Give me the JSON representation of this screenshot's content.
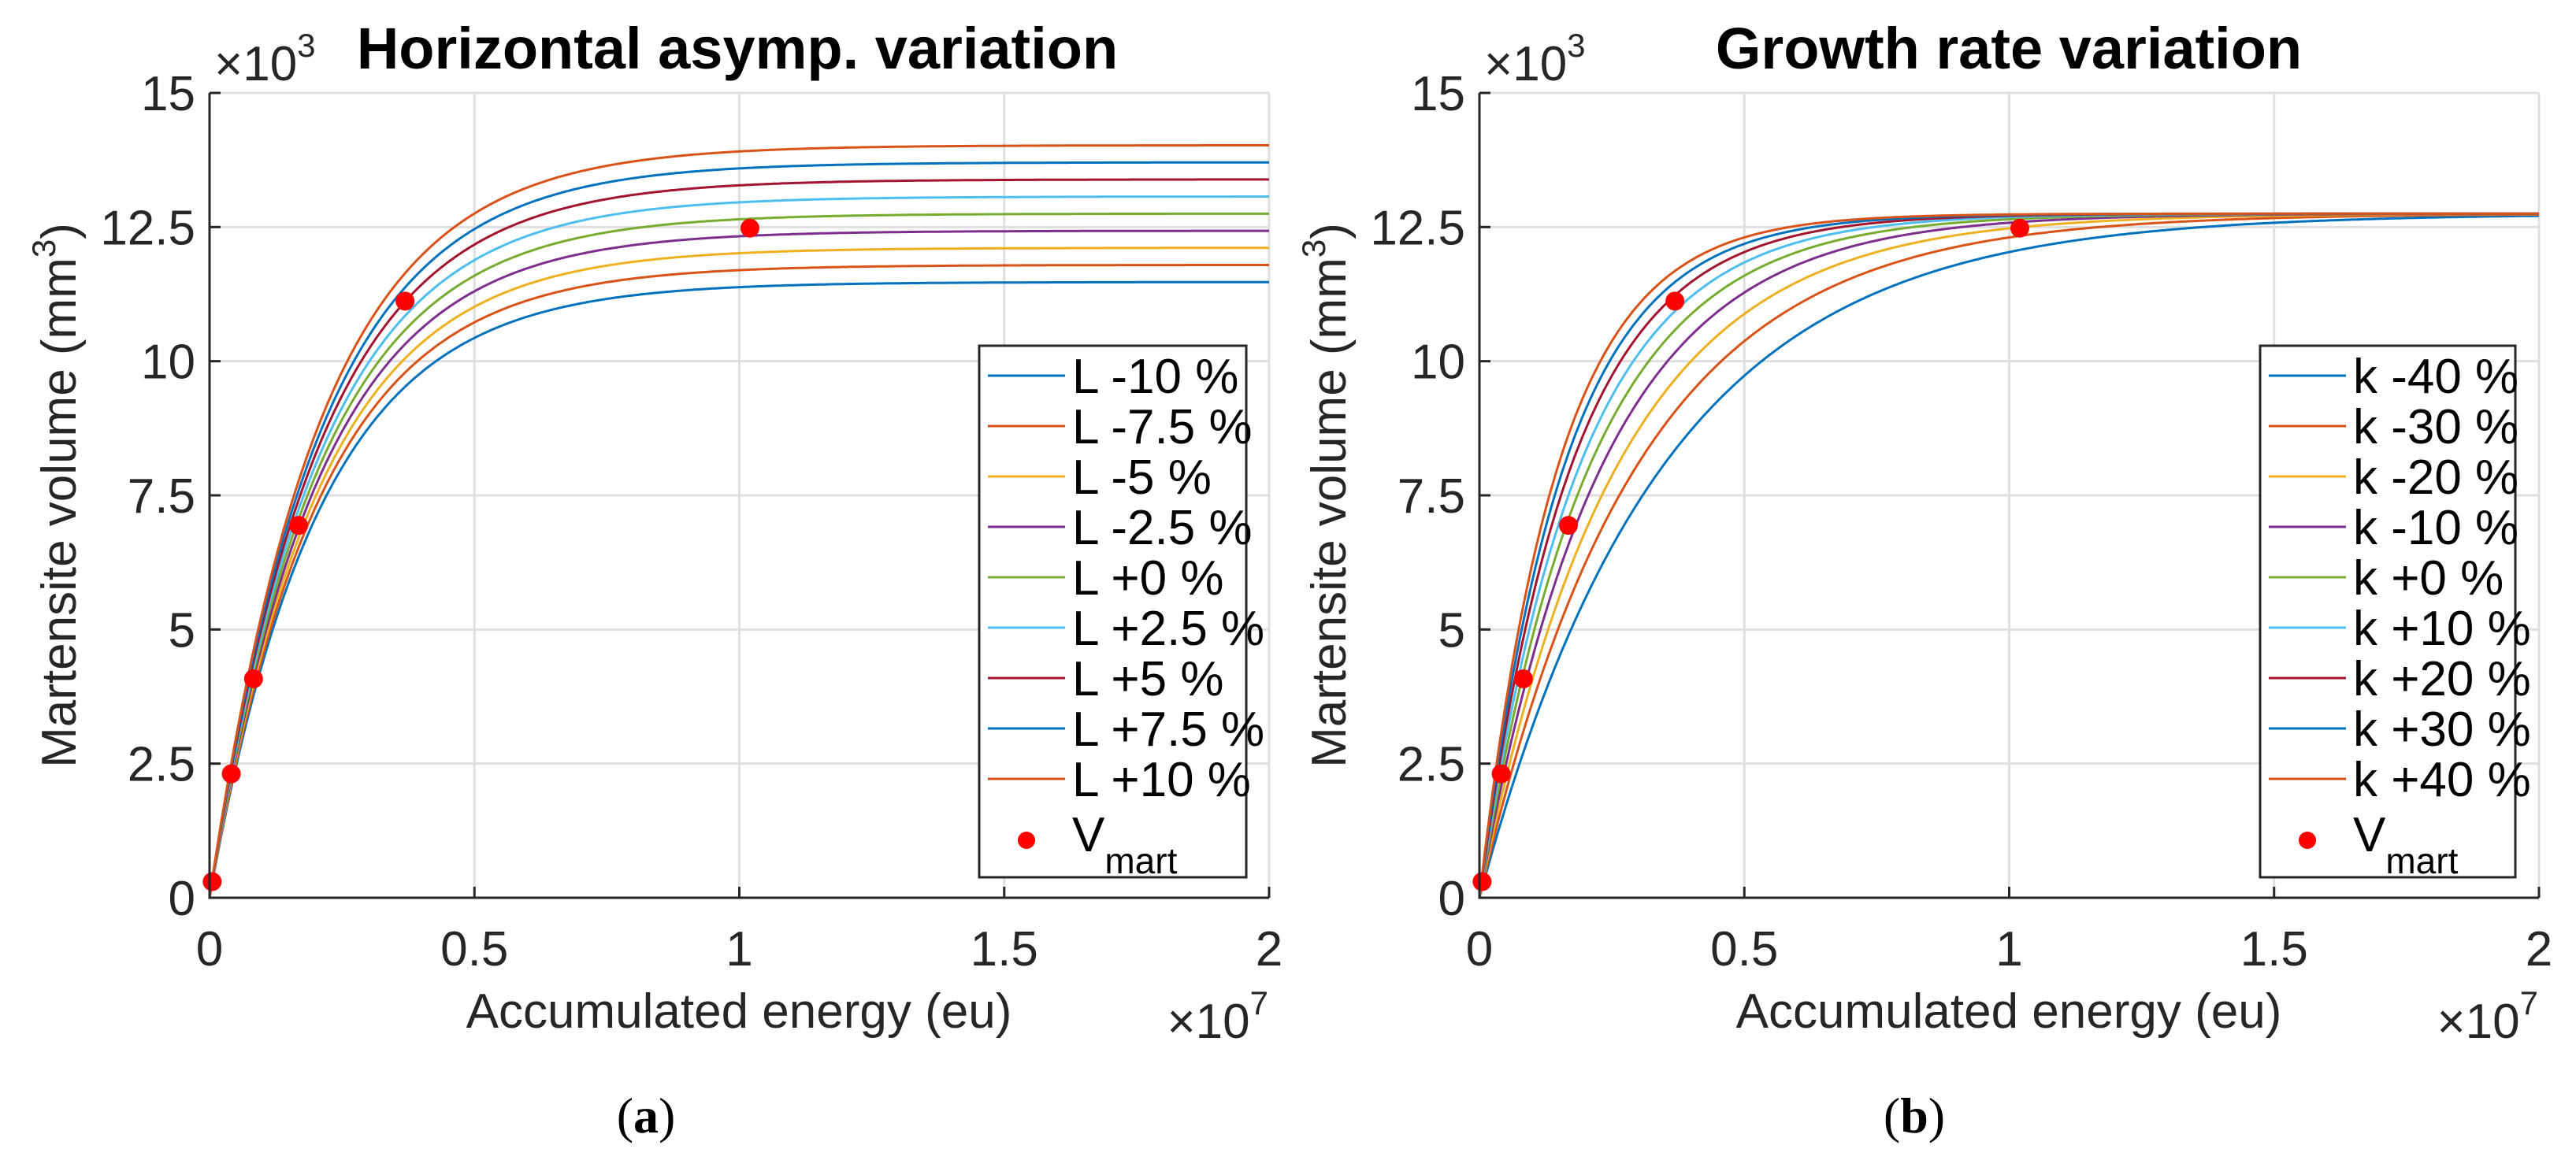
{
  "chart_data": [
    {
      "type": "line",
      "title": "Horizontal asymp. variation",
      "caption_open": "(",
      "caption_letter": "a",
      "caption_close": ")",
      "xlabel": "Accumulated energy (eu)",
      "ylabel_main": "Martensite volume (mm",
      "ylabel_sup": "3",
      "ylabel_end": ")",
      "x_multiplier_base": "×10",
      "x_multiplier_exp": "7",
      "y_multiplier_base": "×10",
      "y_multiplier_exp": "3",
      "xlim": [
        0,
        2
      ],
      "ylim": [
        0,
        15
      ],
      "xticks": [
        0,
        0.5,
        1,
        1.5,
        2
      ],
      "xtick_labels": [
        "0",
        "0.5",
        "1",
        "1.5",
        "2"
      ],
      "yticks": [
        0,
        2.5,
        5,
        7.5,
        10,
        12.5,
        15
      ],
      "ytick_labels": [
        "0",
        "2.5",
        "5",
        "7.5",
        "10",
        "12.5",
        "15"
      ],
      "grid": true,
      "legend_position": "right",
      "model": "y = L * (1 - exp(-k * x))",
      "series": [
        {
          "name": "L -10 %",
          "L": 11.475,
          "k": 4.8,
          "color": "#0072BD"
        },
        {
          "name": "L -7.5 %",
          "L": 11.794,
          "k": 4.8,
          "color": "#D95319"
        },
        {
          "name": "L -5 %",
          "L": 12.113,
          "k": 4.8,
          "color": "#EDB120"
        },
        {
          "name": "L -2.5 %",
          "L": 12.431,
          "k": 4.8,
          "color": "#7E2F8E"
        },
        {
          "name": "L +0 %",
          "L": 12.75,
          "k": 4.8,
          "color": "#77AC30"
        },
        {
          "name": "L +2.5 %",
          "L": 13.069,
          "k": 4.8,
          "color": "#4DBEEE"
        },
        {
          "name": "L +5 %",
          "L": 13.388,
          "k": 4.8,
          "color": "#A2142F"
        },
        {
          "name": "L +7.5 %",
          "L": 13.706,
          "k": 4.8,
          "color": "#0072BD"
        },
        {
          "name": "L +10 %",
          "L": 14.025,
          "k": 4.8,
          "color": "#D95319"
        }
      ],
      "points": {
        "name_base": "V",
        "name_sub": "mart",
        "color": "#FF0000",
        "x": [
          0.005,
          0.041,
          0.083,
          0.168,
          0.369,
          1.02
        ],
        "y": [
          0.3,
          2.31,
          4.08,
          6.94,
          11.12,
          12.48
        ]
      }
    },
    {
      "type": "line",
      "title": "Growth rate variation",
      "caption_open": "(",
      "caption_letter": "b",
      "caption_close": ")",
      "xlabel": "Accumulated energy (eu)",
      "ylabel_main": "Martensite volume (mm",
      "ylabel_sup": "3",
      "ylabel_end": ")",
      "x_multiplier_base": "×10",
      "x_multiplier_exp": "7",
      "y_multiplier_base": "×10",
      "y_multiplier_exp": "3",
      "xlim": [
        0,
        2
      ],
      "ylim": [
        0,
        15
      ],
      "xticks": [
        0,
        0.5,
        1,
        1.5,
        2
      ],
      "xtick_labels": [
        "0",
        "0.5",
        "1",
        "1.5",
        "2"
      ],
      "yticks": [
        0,
        2.5,
        5,
        7.5,
        10,
        12.5,
        15
      ],
      "ytick_labels": [
        "0",
        "2.5",
        "5",
        "7.5",
        "10",
        "12.5",
        "15"
      ],
      "grid": true,
      "legend_position": "right",
      "model": "y = L * (1 - exp(-k * x))",
      "series": [
        {
          "name": "k -40 %",
          "L": 12.75,
          "k": 2.88,
          "color": "#0072BD"
        },
        {
          "name": "k -30 %",
          "L": 12.75,
          "k": 3.36,
          "color": "#D95319"
        },
        {
          "name": "k -20 %",
          "L": 12.75,
          "k": 3.84,
          "color": "#EDB120"
        },
        {
          "name": "k -10 %",
          "L": 12.75,
          "k": 4.32,
          "color": "#7E2F8E"
        },
        {
          "name": "k +0 %",
          "L": 12.75,
          "k": 4.8,
          "color": "#77AC30"
        },
        {
          "name": "k +10 %",
          "L": 12.75,
          "k": 5.28,
          "color": "#4DBEEE"
        },
        {
          "name": "k +20 %",
          "L": 12.75,
          "k": 5.76,
          "color": "#A2142F"
        },
        {
          "name": "k +30 %",
          "L": 12.75,
          "k": 6.24,
          "color": "#0072BD"
        },
        {
          "name": "k +40 %",
          "L": 12.75,
          "k": 6.72,
          "color": "#D95319"
        }
      ],
      "points": {
        "name_base": "V",
        "name_sub": "mart",
        "color": "#FF0000",
        "x": [
          0.005,
          0.041,
          0.083,
          0.168,
          0.369,
          1.02
        ],
        "y": [
          0.3,
          2.31,
          4.08,
          6.94,
          11.12,
          12.48
        ]
      }
    }
  ]
}
